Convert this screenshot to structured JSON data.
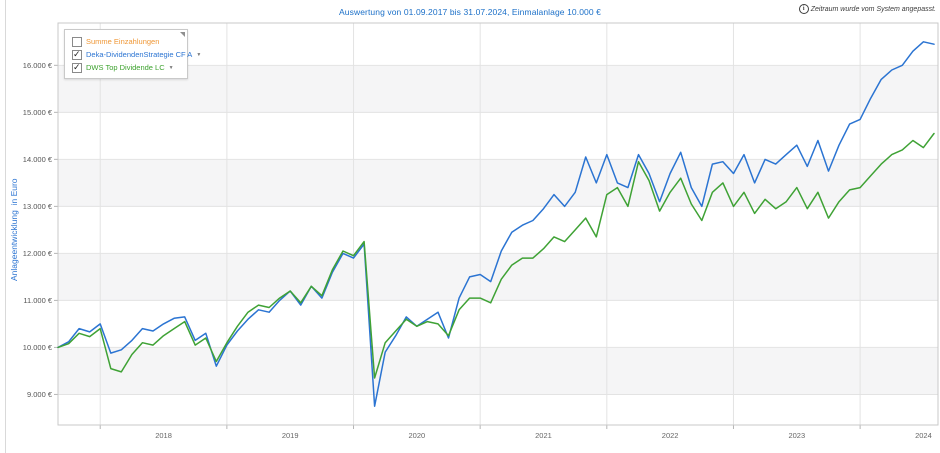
{
  "header": {
    "title": "Auswertung von 01.09.2017 bis 31.07.2024, Einmalanlage 10.000 €",
    "notice": "Zeitraum wurde vom System angepasst.",
    "notice_icon": "info-icon"
  },
  "legend": {
    "items": [
      {
        "label": "Summe Einzahlungen",
        "checked": false,
        "dropdown": false,
        "color": "#ef9736"
      },
      {
        "label": "Deka-DividendenStrategie CF A",
        "checked": true,
        "dropdown": true,
        "color": "#2b74d2"
      },
      {
        "label": "DWS Top Dividende LC",
        "checked": true,
        "dropdown": true,
        "color": "#3da22e"
      }
    ]
  },
  "chart_data": {
    "type": "line",
    "title": "Auswertung von 01.09.2017 bis 31.07.2024, Einmalanlage 10.000 €",
    "ylabel": "Anlageentwicklung  in Euro",
    "x_start": "2017-09",
    "x_end": "2024-07-31",
    "x_tick_labels": [
      "2018",
      "2019",
      "2020",
      "2021",
      "2022",
      "2023",
      "2024"
    ],
    "x_gridline_months": [
      4,
      16,
      28,
      40,
      52,
      64,
      76
    ],
    "y_ticks": [
      9000,
      10000,
      11000,
      12000,
      13000,
      14000,
      15000,
      16000
    ],
    "y_tick_suffix": " €",
    "ylim": [
      8350,
      16900
    ],
    "grid": true,
    "legend_position": "top-left",
    "band_color": "#f5f5f6",
    "grid_color": "#e3e3e3",
    "axis_color": "#c9c9c9",
    "tick_label_color": "#666666",
    "series": [
      {
        "name": "Deka-DividendenStrategie CF A",
        "color": "#2b74d2",
        "visible": true,
        "sampling": "monthly",
        "values": [
          10000,
          10120,
          10400,
          10330,
          10500,
          9880,
          9950,
          10150,
          10400,
          10350,
          10500,
          10620,
          10650,
          10150,
          10300,
          9600,
          10050,
          10350,
          10600,
          10800,
          10750,
          11000,
          11200,
          10900,
          11300,
          11050,
          11600,
          12000,
          11900,
          12200,
          8750,
          9900,
          10250,
          10650,
          10450,
          10600,
          10750,
          10200,
          11050,
          11500,
          11550,
          11400,
          12050,
          12450,
          12600,
          12700,
          12950,
          13250,
          13000,
          13300,
          14050,
          13500,
          14100,
          13500,
          13400,
          14100,
          13700,
          13100,
          13700,
          14150,
          13400,
          13000,
          13900,
          13950,
          13700,
          14100,
          13500,
          14000,
          13900,
          14100,
          14300,
          13850,
          14400,
          13750,
          14300,
          14750,
          14850,
          15300,
          15700,
          15900,
          16000,
          16300,
          16500,
          16450
        ]
      },
      {
        "name": "DWS Top Dividende LC",
        "color": "#3fa235",
        "visible": true,
        "sampling": "monthly",
        "values": [
          10000,
          10080,
          10300,
          10230,
          10400,
          9550,
          9480,
          9850,
          10100,
          10050,
          10250,
          10400,
          10550,
          10050,
          10200,
          9700,
          10100,
          10450,
          10750,
          10900,
          10850,
          11050,
          11200,
          10950,
          11300,
          11100,
          11650,
          12050,
          11950,
          12250,
          9350,
          10100,
          10350,
          10600,
          10450,
          10550,
          10500,
          10250,
          10800,
          11050,
          11050,
          10950,
          11450,
          11750,
          11900,
          11900,
          12100,
          12350,
          12250,
          12500,
          12750,
          12350,
          13250,
          13400,
          13000,
          13950,
          13550,
          12900,
          13300,
          13600,
          13050,
          12700,
          13300,
          13500,
          13000,
          13300,
          12850,
          13150,
          12950,
          13100,
          13400,
          12950,
          13300,
          12750,
          13100,
          13350,
          13400,
          13650,
          13900,
          14100,
          14200,
          14400,
          14250,
          14550
        ]
      },
      {
        "name": "Summe Einzahlungen",
        "color": "#ef9736",
        "visible": false,
        "values": null
      }
    ]
  }
}
